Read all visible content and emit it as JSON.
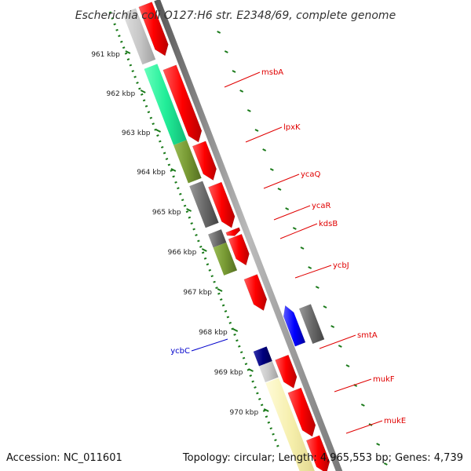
{
  "title": "Escherichia coli O127:H6 str. E2348/69, complete genome",
  "footer": {
    "accession": "Accession: NC_011601",
    "topology": "Topology: circular; Length: 4,965,553 bp; Genes: 4,739"
  },
  "scale": {
    "ticks": [
      {
        "label": "961 kbp",
        "kbp": 961
      },
      {
        "label": "962 kbp",
        "kbp": 962
      },
      {
        "label": "963 kbp",
        "kbp": 963
      },
      {
        "label": "964 kbp",
        "kbp": 964
      },
      {
        "label": "965 kbp",
        "kbp": 965
      },
      {
        "label": "966 kbp",
        "kbp": 966
      },
      {
        "label": "967 kbp",
        "kbp": 967
      },
      {
        "label": "968 kbp",
        "kbp": 968
      },
      {
        "label": "969 kbp",
        "kbp": 969
      },
      {
        "label": "970 kbp",
        "kbp": 970
      }
    ]
  },
  "genes": [
    {
      "label": "msbA",
      "color": "#e00000"
    },
    {
      "label": "lpxK",
      "color": "#e00000"
    },
    {
      "label": "ycaQ",
      "color": "#e00000"
    },
    {
      "label": "ycaR",
      "color": "#e00000"
    },
    {
      "label": "kdsB",
      "color": "#e00000"
    },
    {
      "label": "ycbJ",
      "color": "#e00000"
    },
    {
      "label": "smtA",
      "color": "#e00000"
    },
    {
      "label": "mukF",
      "color": "#e00000"
    },
    {
      "label": "mukE",
      "color": "#e00000"
    },
    {
      "label": "ycbC",
      "color": "#0000cc"
    }
  ],
  "colors": {
    "forward_gene": "#ff0000",
    "reverse_gene": "#0000ff",
    "backbone": "#888888",
    "scale_dots": "#1a7a1a",
    "cog_green": "#22ee99",
    "cog_olive": "#779933",
    "cog_gray": "#6a6a6a",
    "cog_navy": "#000080",
    "cog_yellow": "#f5eeaa"
  }
}
